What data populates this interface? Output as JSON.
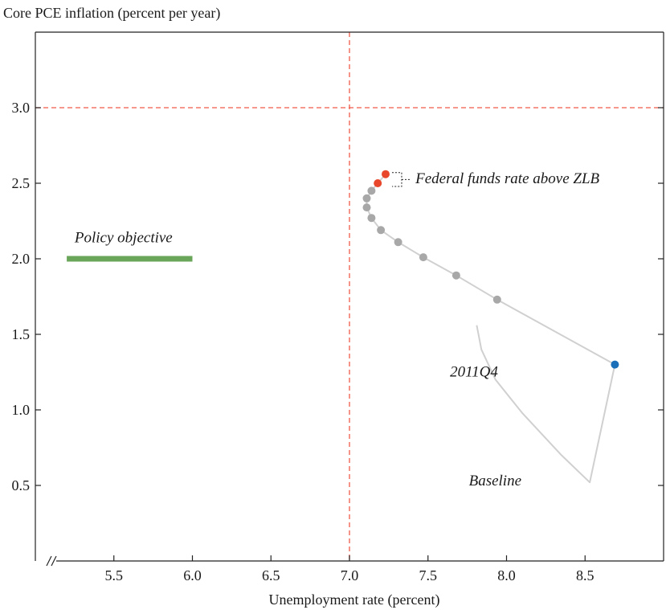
{
  "chart_data": {
    "type": "line",
    "ylabel": "Core PCE inflation (percent per year)",
    "xlabel": "Unemployment rate (percent)",
    "xlim": [
      5.0,
      9.0
    ],
    "ylim": [
      0.0,
      3.5
    ],
    "xticks": [
      5.5,
      6.0,
      6.5,
      7.0,
      7.5,
      8.0,
      8.5
    ],
    "xtick_labels": [
      "5.5",
      "6.0",
      "6.5",
      "7.0",
      "7.5",
      "8.0",
      "8.5"
    ],
    "yticks": [
      0.5,
      1.0,
      1.5,
      2.0,
      2.5,
      3.0
    ],
    "ytick_labels": [
      "0.5",
      "1.0",
      "1.5",
      "2.0",
      "2.5",
      "3.0"
    ],
    "grid": false,
    "reference_lines": {
      "vertical_x": 7.0,
      "horizontal_y": 3.0,
      "color": "#f05a4a"
    },
    "policy_objective": {
      "label": "Policy objective",
      "x": [
        5.2,
        6.0
      ],
      "y": 2.0,
      "color": "#6aa65a"
    },
    "series": [
      {
        "label": "Baseline",
        "color": "#d0d0d0",
        "x": [
          8.69,
          8.53,
          8.35,
          8.1,
          7.93,
          7.84,
          7.81
        ],
        "y": [
          1.3,
          0.52,
          0.7,
          0.98,
          1.2,
          1.4,
          1.56
        ]
      },
      {
        "color": "#d0d0d0",
        "x": [
          8.69,
          7.94,
          7.68,
          7.47,
          7.31,
          7.2,
          7.14,
          7.11,
          7.11,
          7.14,
          7.18,
          7.23
        ],
        "y": [
          1.3,
          1.73,
          1.89,
          2.01,
          2.11,
          2.19,
          2.27,
          2.34,
          2.4,
          2.45,
          2.5,
          2.56
        ]
      }
    ],
    "points": [
      {
        "x": 8.69,
        "y": 1.3,
        "color": "#1a6fb8"
      },
      {
        "x": 7.94,
        "y": 1.73,
        "color": "#a8a8a8"
      },
      {
        "x": 7.68,
        "y": 1.89,
        "color": "#a8a8a8"
      },
      {
        "x": 7.47,
        "y": 2.01,
        "color": "#a8a8a8"
      },
      {
        "x": 7.31,
        "y": 2.11,
        "color": "#a8a8a8"
      },
      {
        "x": 7.2,
        "y": 2.19,
        "color": "#a8a8a8"
      },
      {
        "x": 7.14,
        "y": 2.27,
        "color": "#a8a8a8"
      },
      {
        "x": 7.11,
        "y": 2.34,
        "color": "#a8a8a8"
      },
      {
        "x": 7.11,
        "y": 2.4,
        "color": "#a8a8a8"
      },
      {
        "x": 7.14,
        "y": 2.45,
        "color": "#a8a8a8"
      },
      {
        "x": 7.18,
        "y": 2.5,
        "color": "#e8472b"
      },
      {
        "x": 7.23,
        "y": 2.56,
        "color": "#e8472b"
      }
    ],
    "annotations": [
      {
        "text": "Policy objective",
        "x": 5.25,
        "y": 2.11
      },
      {
        "text": "Federal funds rate above ZLB",
        "x": 7.42,
        "y": 2.5
      },
      {
        "text": "2011Q4",
        "x": 7.64,
        "y": 1.22
      },
      {
        "text": "Baseline",
        "x": 7.76,
        "y": 0.5
      }
    ]
  }
}
